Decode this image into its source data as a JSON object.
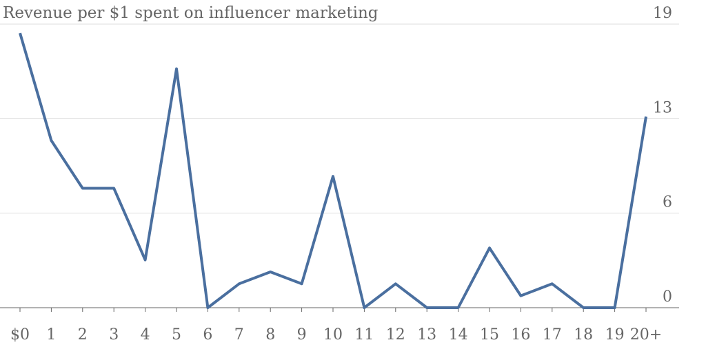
{
  "chart_data": {
    "type": "line",
    "title": "Revenue per $1 spent on influencer marketing",
    "categories": [
      "$0",
      "1",
      "2",
      "3",
      "4",
      "5",
      "6",
      "7",
      "8",
      "9",
      "10",
      "11",
      "12",
      "13",
      "14",
      "15",
      "16",
      "17",
      "18",
      "19",
      "20+"
    ],
    "series": [
      {
        "name": "Revenue",
        "color": "#4a6f9f",
        "values": [
          18.4,
          11.2,
          8.0,
          8.0,
          3.2,
          16.0,
          0,
          1.6,
          2.4,
          1.6,
          8.8,
          0,
          1.6,
          0,
          0,
          4.0,
          0.8,
          1.6,
          0,
          0,
          12.8
        ]
      }
    ],
    "ylim": [
      0,
      19
    ],
    "yticks": [
      0,
      {
        "value": 6.333,
        "label": "6"
      },
      {
        "value": 12.667,
        "label": "13"
      },
      19
    ],
    "grid": true
  }
}
